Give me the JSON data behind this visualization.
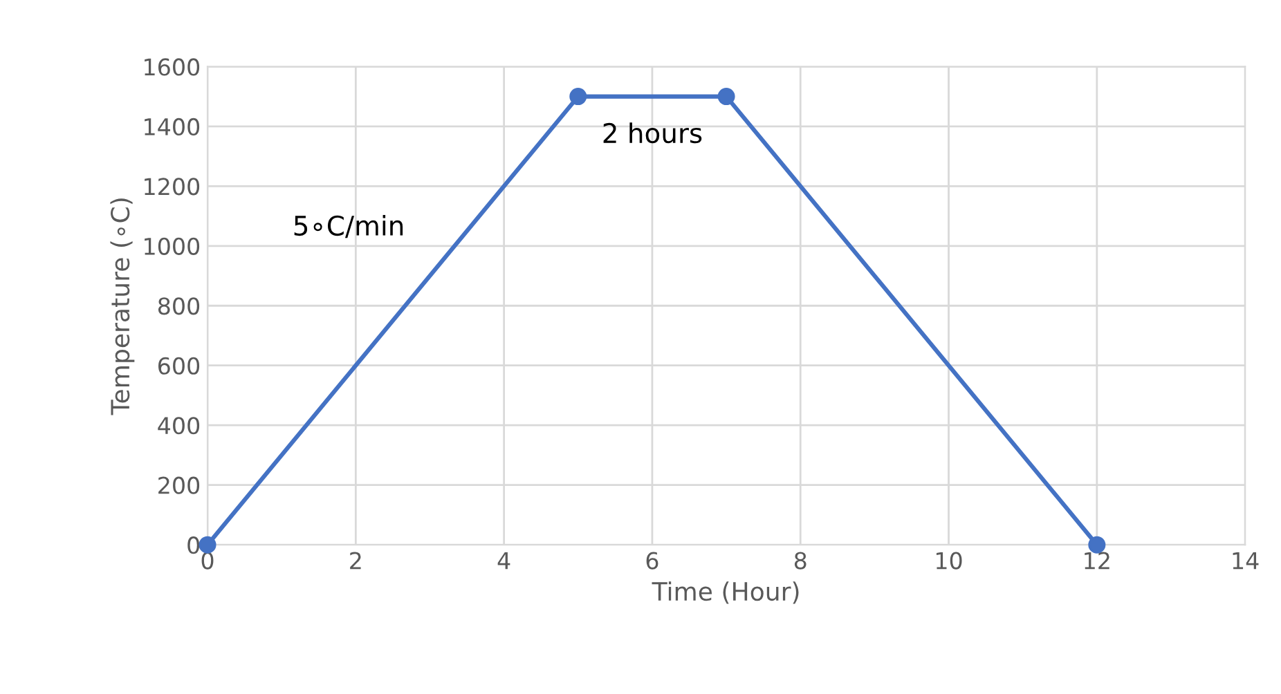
{
  "chart_data": {
    "type": "line",
    "xlabel": "Time (Hour)",
    "ylabel": "Temperature (∘C)",
    "x": [
      0,
      5,
      7,
      12
    ],
    "series": [
      {
        "color": "#4472c4",
        "values": [
          0,
          1500,
          1500,
          0
        ]
      }
    ],
    "xlim": [
      0,
      14
    ],
    "xticks": [
      0,
      2,
      4,
      6,
      8,
      10,
      12,
      14
    ],
    "ylim": [
      0,
      1600
    ],
    "yticks": [
      0,
      200,
      400,
      600,
      800,
      1000,
      1200,
      1400,
      1600
    ],
    "grid": true,
    "marker": "circle",
    "line_style": "solid",
    "annotations": [
      "5∘C/min",
      "2 hours"
    ]
  }
}
